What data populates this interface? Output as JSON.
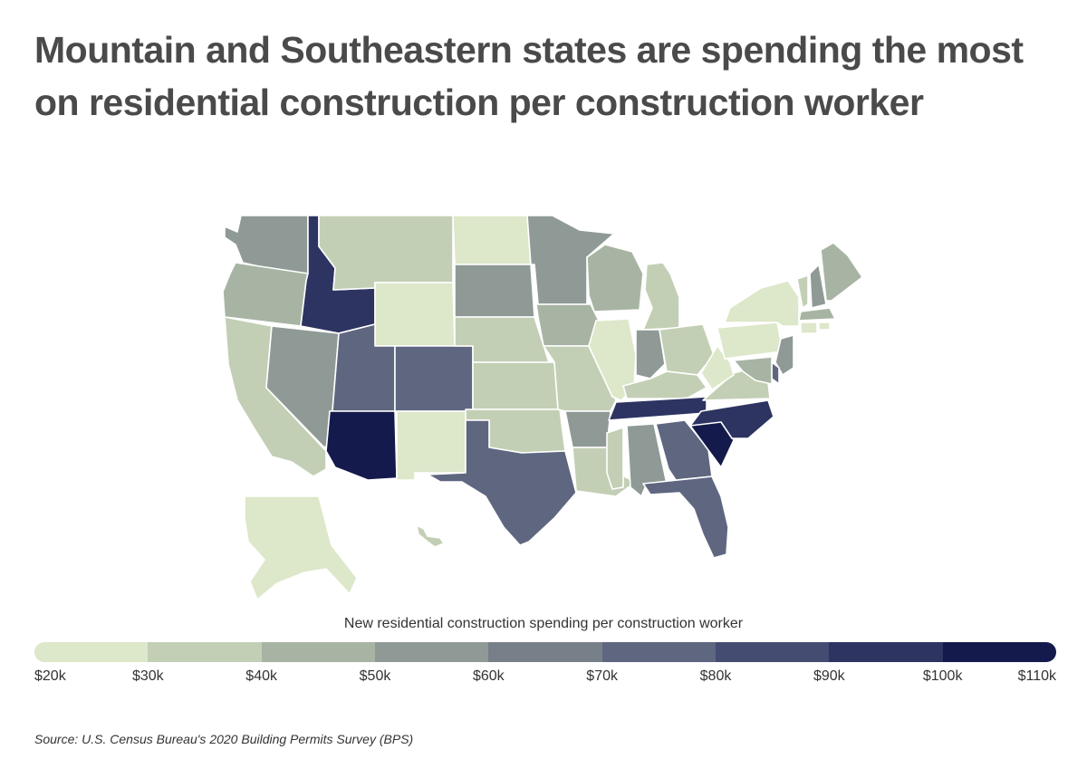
{
  "title": "Mountain and Southeastern states are spending the most on residential construction per construction worker",
  "legend": {
    "title": "New residential construction spending per construction worker",
    "ticks": [
      "$20k",
      "$30k",
      "$40k",
      "$50k",
      "$60k",
      "$70k",
      "$80k",
      "$90k",
      "$100k",
      "$110k"
    ],
    "colors": [
      "#dde7c9",
      "#c3cfb5",
      "#a7b4a3",
      "#8f9a96",
      "#777f89",
      "#5f6680",
      "#454c72",
      "#2d3462",
      "#151a4c"
    ]
  },
  "source": "Source:  U.S. Census Bureau's 2020 Building Permits Survey (BPS)",
  "map_data": {
    "type": "choropleth",
    "region": "United States",
    "unit": "USD",
    "bins": [
      [
        20000,
        30000
      ],
      [
        30000,
        40000
      ],
      [
        40000,
        50000
      ],
      [
        50000,
        60000
      ],
      [
        60000,
        70000
      ],
      [
        70000,
        80000
      ],
      [
        80000,
        90000
      ],
      [
        90000,
        100000
      ],
      [
        100000,
        110000
      ]
    ],
    "states": {
      "WA": 3,
      "OR": 2,
      "CA": 1,
      "NV": 3,
      "ID": 7,
      "MT": 1,
      "WY": 0,
      "UT": 5,
      "CO": 5,
      "AZ": 8,
      "NM": 0,
      "ND": 0,
      "SD": 3,
      "NE": 1,
      "KS": 1,
      "OK": 1,
      "TX": 5,
      "MN": 3,
      "IA": 2,
      "MO": 1,
      "AR": 3,
      "LA": 1,
      "WI": 2,
      "IL": 0,
      "MI": 1,
      "IN": 3,
      "OH": 1,
      "KY": 1,
      "TN": 7,
      "MS": 1,
      "AL": 3,
      "GA": 5,
      "FL": 5,
      "SC": 8,
      "NC": 7,
      "VA": 1,
      "WV": 0,
      "PA": 0,
      "NY": 0,
      "VT": 1,
      "NH": 3,
      "ME": 2,
      "MA": 2,
      "RI": 0,
      "CT": 0,
      "NJ": 3,
      "DE": 5,
      "MD": 2,
      "AK": 0,
      "HI": 1
    }
  }
}
